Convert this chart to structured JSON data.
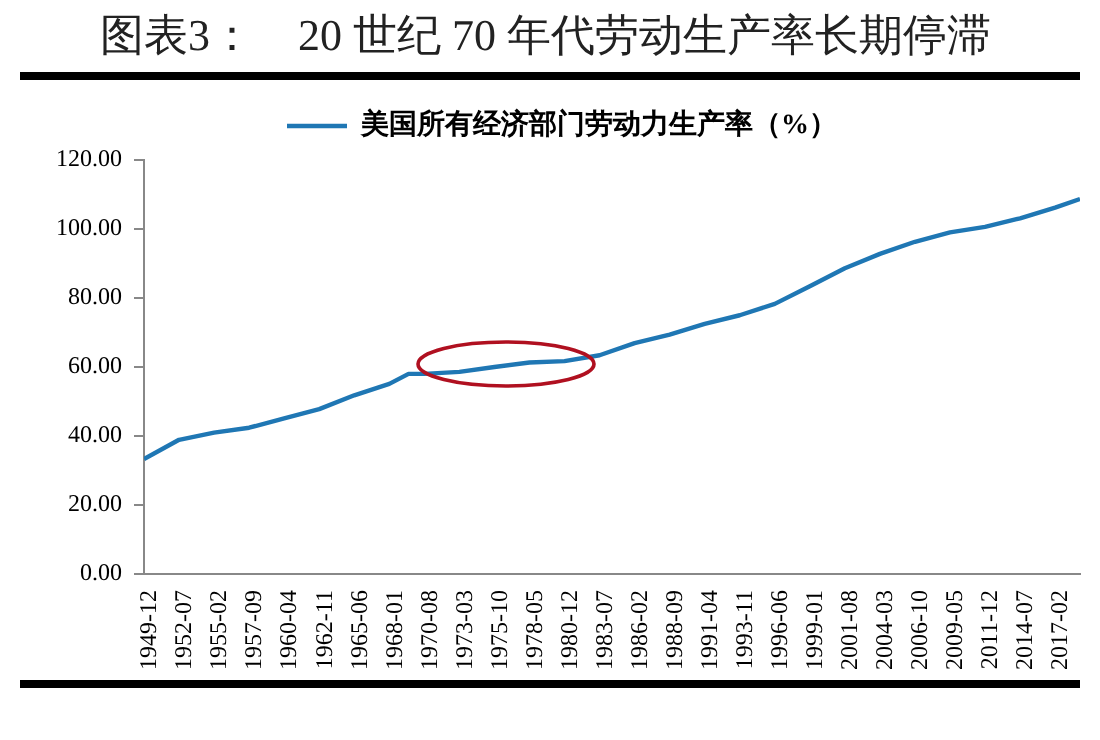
{
  "chart_data": {
    "type": "line",
    "title": "图表3：　20 世纪 70 年代劳动生产率长期停滞",
    "x": [
      "1949-12",
      "1952-07",
      "1955-02",
      "1957-09",
      "1960-04",
      "1962-11",
      "1965-06",
      "1968-01",
      "1969-06",
      "1970-08",
      "1973-03",
      "1975-10",
      "1978-05",
      "1980-12",
      "1983-07",
      "1986-02",
      "1988-09",
      "1991-04",
      "1993-11",
      "1996-06",
      "1999-01",
      "2001-08",
      "2004-03",
      "2006-10",
      "2009-05",
      "2011-12",
      "2014-07",
      "2017-02",
      "2018-12"
    ],
    "series": [
      {
        "name": "美国所有经济部门劳动力生产率（%）",
        "color": "#1f77b4",
        "values": [
          33.3,
          38.9,
          41,
          42.4,
          45.1,
          47.8,
          51.8,
          55.1,
          58,
          58,
          58.6,
          60,
          61.3,
          61.7,
          63.4,
          66.9,
          69.4,
          72.5,
          75,
          78.3,
          83.4,
          88.6,
          92.8,
          96.3,
          99,
          100.6,
          103.1,
          106.2,
          108.7
        ]
      }
    ],
    "xlim": [
      "1949-12",
      "2018-12"
    ],
    "xticks": [
      "1949-12",
      "1952-07",
      "1955-02",
      "1957-09",
      "1960-04",
      "1962-11",
      "1965-06",
      "1968-01",
      "1970-08",
      "1973-03",
      "1975-10",
      "1978-05",
      "1980-12",
      "1983-07",
      "1986-02",
      "1988-09",
      "1991-04",
      "1993-11",
      "1996-06",
      "1999-01",
      "2001-08",
      "2004-03",
      "2006-10",
      "2009-05",
      "2011-12",
      "2014-07",
      "2017-02"
    ],
    "ylim": [
      0,
      120
    ],
    "yticks": [
      {
        "value": 0,
        "label": "0.00"
      },
      {
        "value": 20,
        "label": "20.00"
      },
      {
        "value": 40,
        "label": "40.00"
      },
      {
        "value": 60,
        "label": "60.00"
      },
      {
        "value": 80,
        "label": "80.00"
      },
      {
        "value": 100,
        "label": "100.00"
      },
      {
        "value": 120,
        "label": "120.00"
      }
    ],
    "grid": false,
    "legend": "top",
    "marker": "none",
    "line_style": "solid"
  }
}
